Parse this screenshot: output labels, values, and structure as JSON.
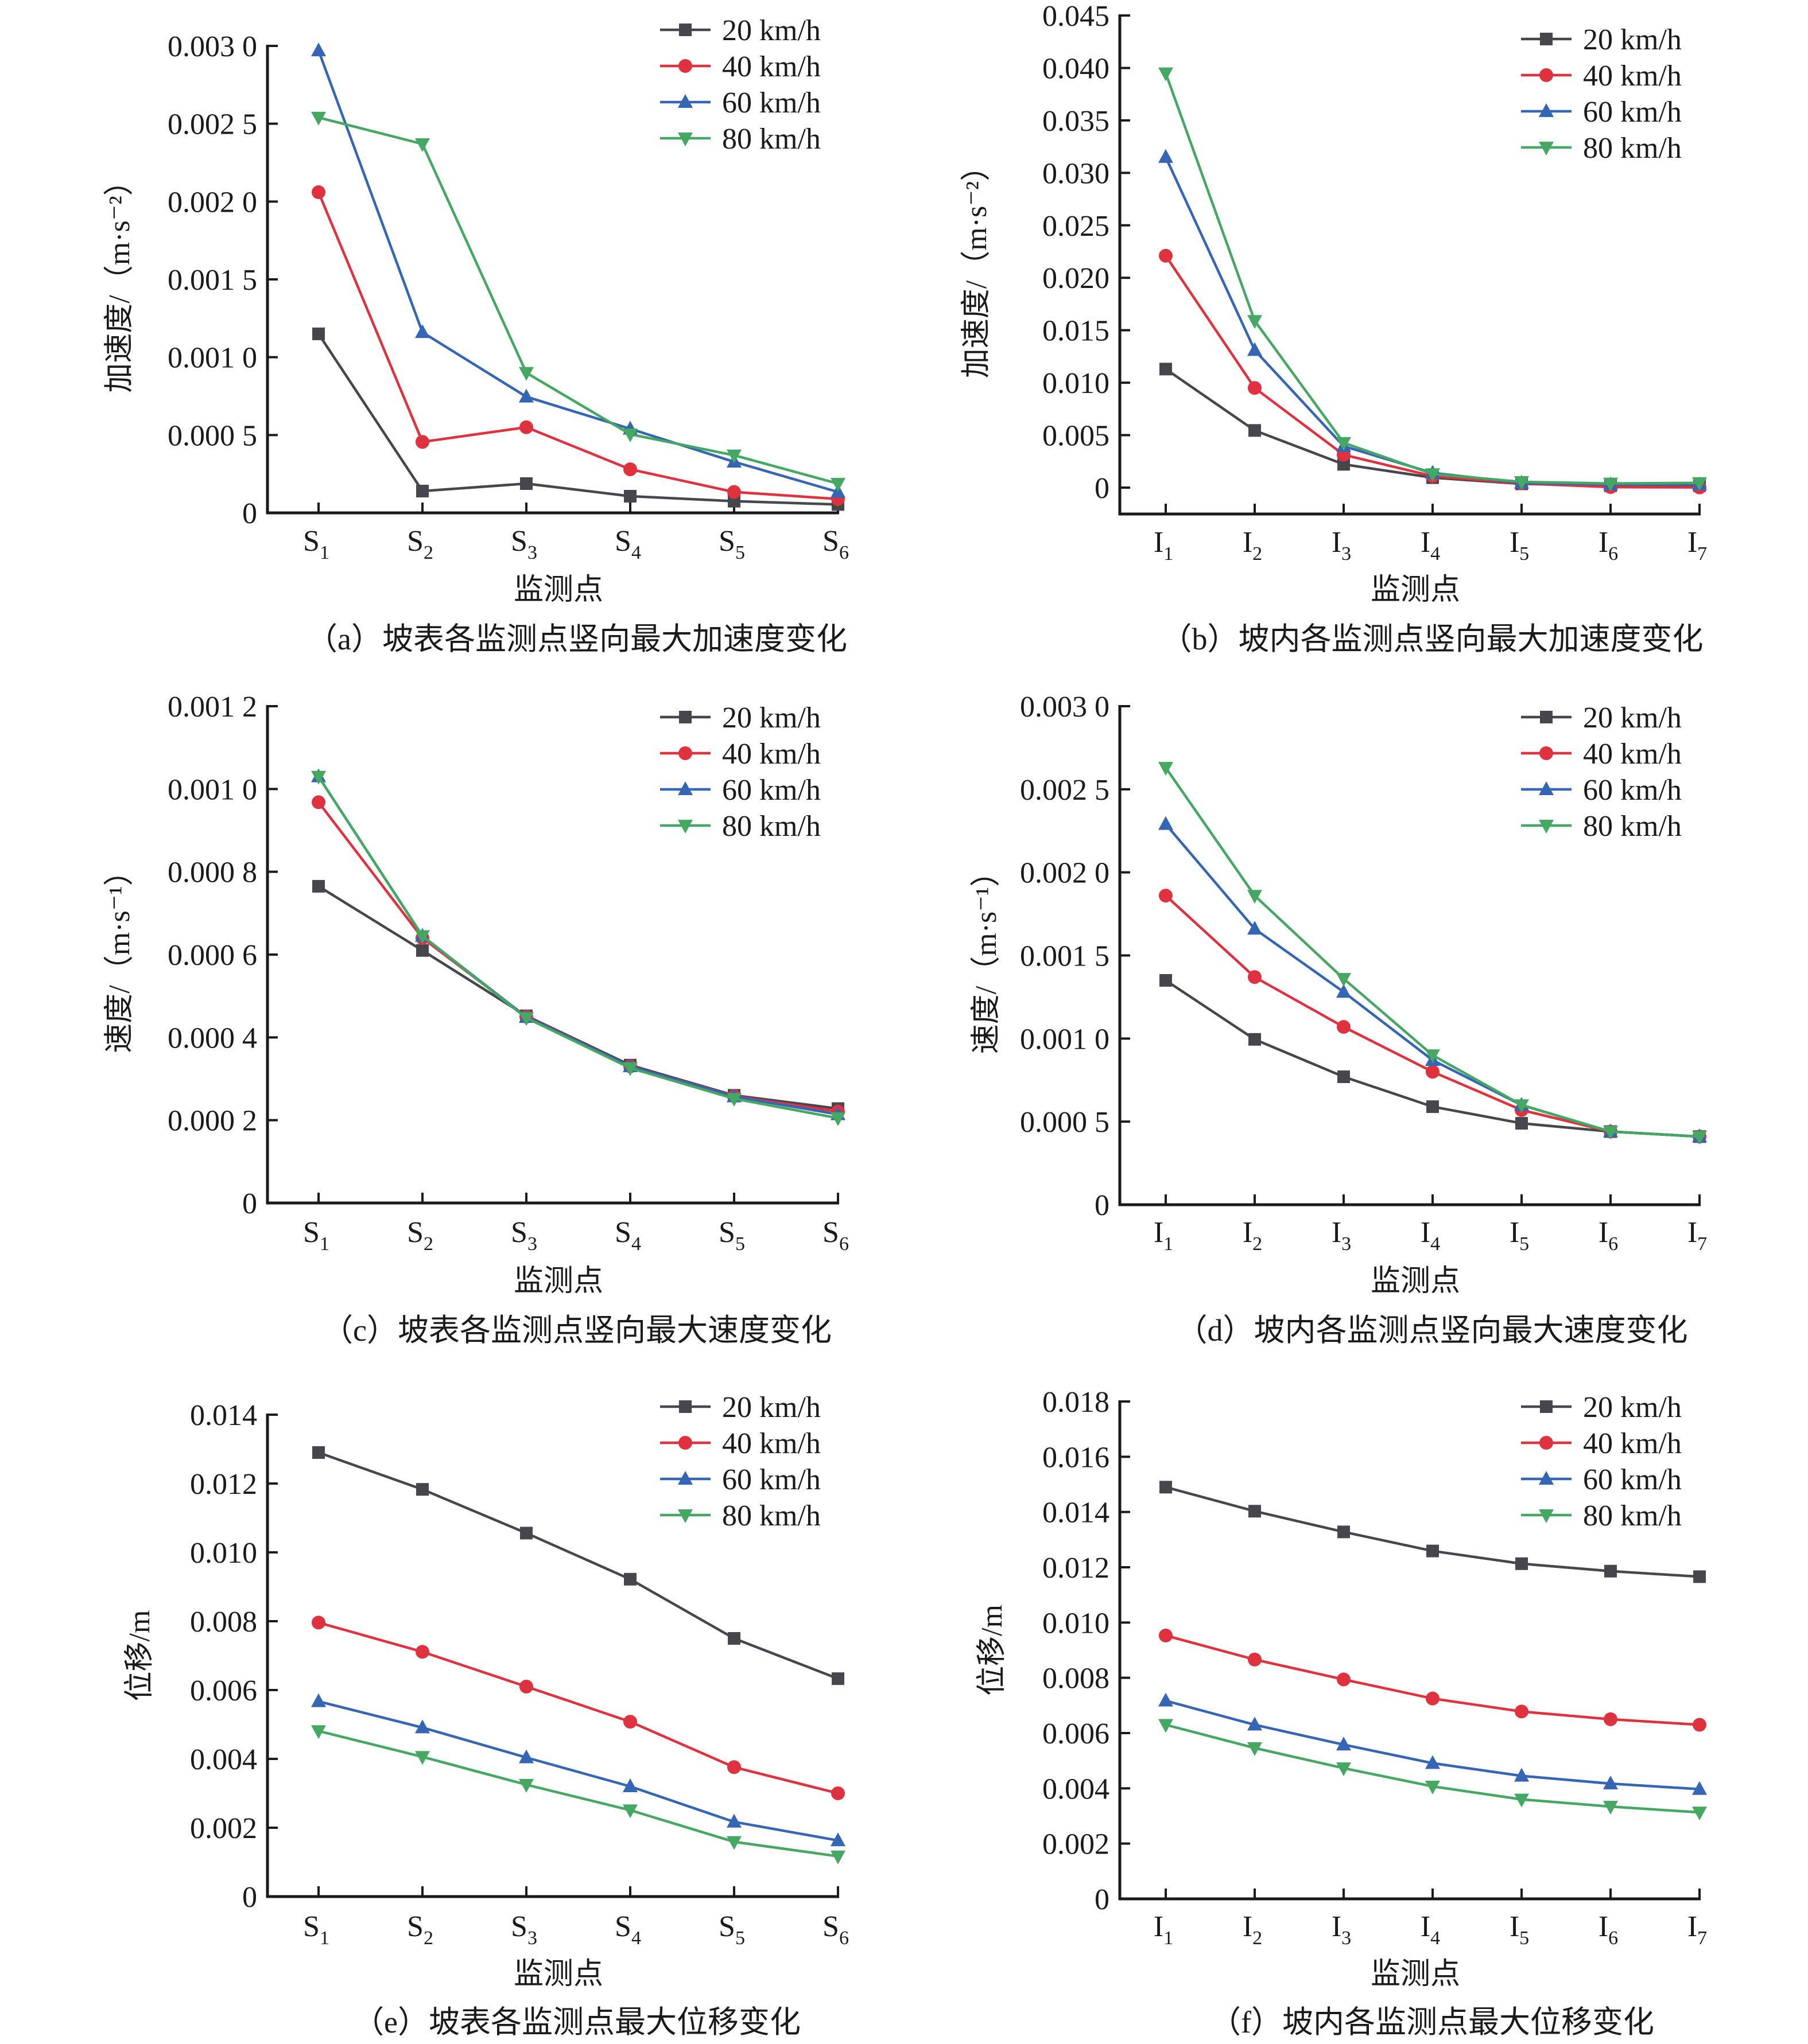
{
  "colors": {
    "20 km/h": "#45474d",
    "40 km/h": "#e0313f",
    "60 km/h": "#3565b5",
    "80 km/h": "#44a862"
  },
  "chart_data": [
    {
      "id": "a",
      "type": "line",
      "caption": "（a）坡表各监测点竖向最大加速度变化",
      "xlabel": "监测点",
      "ylabel": "加速度/（m·s⁻²）",
      "categories": [
        [
          "S",
          "1"
        ],
        [
          "S",
          "2"
        ],
        [
          "S",
          "3"
        ],
        [
          "S",
          "4"
        ],
        [
          "S",
          "5"
        ],
        [
          "S",
          "6"
        ]
      ],
      "ylim": [
        0,
        0.003
      ],
      "yticks": [
        0,
        0.0005,
        0.001,
        0.0015,
        0.002,
        0.0025,
        0.003
      ],
      "ytick_labels": [
        "0",
        "0.000 5",
        "0.001 0",
        "0.001 5",
        "0.002 0",
        "0.002 5",
        "0.003 0"
      ],
      "legend": "top-right",
      "grid": false,
      "series": [
        {
          "name": "20 km/h",
          "marker": "square",
          "values": [
            0.00115,
            0.00014,
            0.000188,
            0.000107,
            7.5e-05,
            5.4e-05
          ]
        },
        {
          "name": "40 km/h",
          "marker": "circle",
          "values": [
            0.00206,
            0.000456,
            0.00055,
            0.00028,
            0.000134,
            8.9e-05
          ]
        },
        {
          "name": "60 km/h",
          "marker": "triangle-up",
          "values": [
            0.00297,
            0.00116,
            0.000746,
            0.00054,
            0.000328,
            0.000134
          ]
        },
        {
          "name": "80 km/h",
          "marker": "triangle-down",
          "values": [
            0.00254,
            0.00237,
            0.0009,
            0.000505,
            0.00037,
            0.000188
          ]
        }
      ]
    },
    {
      "id": "b",
      "type": "line",
      "caption": "（b）坡内各监测点竖向最大加速度变化",
      "xlabel": "监测点",
      "ylabel": "加速度/（m·s⁻²）",
      "categories": [
        [
          "I",
          "1"
        ],
        [
          "I",
          "2"
        ],
        [
          "I",
          "3"
        ],
        [
          "I",
          "4"
        ],
        [
          "I",
          "5"
        ],
        [
          "I",
          "6"
        ],
        [
          "I",
          "7"
        ]
      ],
      "ylim": [
        -0.0035,
        0.045
      ],
      "yticks": [
        0,
        0.005,
        0.01,
        0.015,
        0.02,
        0.025,
        0.03,
        0.035,
        0.04,
        0.045
      ],
      "ytick_labels": [
        "0",
        "0.005",
        "0.010",
        "0.015",
        "0.020",
        "0.025",
        "0.030",
        "0.035",
        "0.040",
        "0.045"
      ],
      "legend": "top-right",
      "grid": false,
      "series": [
        {
          "name": "20 km/h",
          "marker": "square",
          "values": [
            0.0113,
            0.00545,
            0.00222,
            0.00095,
            0.00036,
            0.00018,
            0.00018
          ]
        },
        {
          "name": "40 km/h",
          "marker": "circle",
          "values": [
            0.0221,
            0.0095,
            0.00313,
            0.0011,
            0.0004,
            5e-05,
            2e-05
          ]
        },
        {
          "name": "60 km/h",
          "marker": "triangle-up",
          "values": [
            0.0315,
            0.0131,
            0.00395,
            0.0014,
            0.00045,
            0.0003,
            0.0003
          ]
        },
        {
          "name": "80 km/h",
          "marker": "triangle-down",
          "values": [
            0.0395,
            0.0159,
            0.00427,
            0.0013,
            0.00055,
            0.0004,
            0.00045
          ]
        }
      ]
    },
    {
      "id": "c",
      "type": "line",
      "caption": "（c）坡表各监测点竖向最大速度变化",
      "xlabel": "监测点",
      "ylabel": "速度/（m·s⁻¹）",
      "categories": [
        [
          "S",
          "1"
        ],
        [
          "S",
          "2"
        ],
        [
          "S",
          "3"
        ],
        [
          "S",
          "4"
        ],
        [
          "S",
          "5"
        ],
        [
          "S",
          "6"
        ]
      ],
      "ylim": [
        0,
        0.0012
      ],
      "yticks": [
        0,
        0.0002,
        0.0004,
        0.0006,
        0.0008,
        0.001,
        0.0012
      ],
      "ytick_labels": [
        "0",
        "0.000 2",
        "0.000 4",
        "0.000 6",
        "0.000 8",
        "0.001 0",
        "0.001 2"
      ],
      "legend": "top-right",
      "grid": false,
      "series": [
        {
          "name": "20 km/h",
          "marker": "square",
          "values": [
            0.000765,
            0.00061,
            0.000452,
            0.000333,
            0.00026,
            0.000228
          ]
        },
        {
          "name": "40 km/h",
          "marker": "circle",
          "values": [
            0.000968,
            0.00064,
            0.00045,
            0.00033,
            0.000258,
            0.000221
          ]
        },
        {
          "name": "60 km/h",
          "marker": "triangle-up",
          "values": [
            0.00103,
            0.000645,
            0.000449,
            0.00033,
            0.000257,
            0.000214
          ]
        },
        {
          "name": "80 km/h",
          "marker": "triangle-down",
          "values": [
            0.00103,
            0.000645,
            0.000447,
            0.000326,
            0.000252,
            0.000205
          ]
        }
      ]
    },
    {
      "id": "d",
      "type": "line",
      "caption": "（d）坡内各监测点竖向最大速度变化",
      "xlabel": "监测点",
      "ylabel": "速度/（m·s⁻¹）",
      "categories": [
        [
          "I",
          "1"
        ],
        [
          "I",
          "2"
        ],
        [
          "I",
          "3"
        ],
        [
          "I",
          "4"
        ],
        [
          "I",
          "5"
        ],
        [
          "I",
          "6"
        ],
        [
          "I",
          "7"
        ]
      ],
      "ylim": [
        0,
        0.003
      ],
      "yticks": [
        0,
        0.0005,
        0.001,
        0.0015,
        0.002,
        0.0025,
        0.003
      ],
      "ytick_labels": [
        "0",
        "0.000 5",
        "0.001 0",
        "0.001 5",
        "0.002 0",
        "0.002 5",
        "0.003 0"
      ],
      "legend": "top-right",
      "grid": false,
      "series": [
        {
          "name": "20 km/h",
          "marker": "square",
          "values": [
            0.00135,
            0.000995,
            0.00077,
            0.00059,
            0.00049,
            0.00044,
            0.00041
          ]
        },
        {
          "name": "40 km/h",
          "marker": "circle",
          "values": [
            0.00186,
            0.00137,
            0.00107,
            0.0008,
            0.00057,
            0.00044,
            0.00041
          ]
        },
        {
          "name": "60 km/h",
          "marker": "triangle-up",
          "values": [
            0.00229,
            0.00166,
            0.00128,
            0.00087,
            0.0006,
            0.00044,
            0.00041
          ]
        },
        {
          "name": "80 km/h",
          "marker": "triangle-down",
          "values": [
            0.00263,
            0.00186,
            0.00136,
            0.0009,
            0.0006,
            0.00044,
            0.00041
          ]
        }
      ]
    },
    {
      "id": "e",
      "type": "line",
      "caption": "（e）坡表各监测点最大位移变化",
      "xlabel": "监测点",
      "ylabel": "位移/m",
      "categories": [
        [
          "S",
          "1"
        ],
        [
          "S",
          "2"
        ],
        [
          "S",
          "3"
        ],
        [
          "S",
          "4"
        ],
        [
          "S",
          "5"
        ],
        [
          "S",
          "6"
        ]
      ],
      "ylim": [
        0,
        0.014
      ],
      "yticks": [
        0,
        0.002,
        0.004,
        0.006,
        0.008,
        0.01,
        0.012,
        0.014
      ],
      "ytick_labels": [
        "0",
        "0.002",
        "0.004",
        "0.006",
        "0.008",
        "0.010",
        "0.012",
        "0.014"
      ],
      "legend": "top-right",
      "grid": false,
      "series": [
        {
          "name": "20 km/h",
          "marker": "square",
          "values": [
            0.0129,
            0.01183,
            0.01056,
            0.00922,
            0.0075,
            0.00633
          ]
        },
        {
          "name": "40 km/h",
          "marker": "circle",
          "values": [
            0.00796,
            0.00711,
            0.0061,
            0.00508,
            0.00376,
            0.003
          ]
        },
        {
          "name": "60 km/h",
          "marker": "triangle-up",
          "values": [
            0.00567,
            0.00491,
            0.00404,
            0.0032,
            0.00217,
            0.00163
          ]
        },
        {
          "name": "80 km/h",
          "marker": "triangle-down",
          "values": [
            0.00481,
            0.00406,
            0.00325,
            0.00251,
            0.00159,
            0.00117
          ]
        }
      ]
    },
    {
      "id": "f",
      "type": "line",
      "caption": "（f）坡内各监测点最大位移变化",
      "xlabel": "监测点",
      "ylabel": "位移/m",
      "categories": [
        [
          "I",
          "1"
        ],
        [
          "I",
          "2"
        ],
        [
          "I",
          "3"
        ],
        [
          "I",
          "4"
        ],
        [
          "I",
          "5"
        ],
        [
          "I",
          "6"
        ],
        [
          "I",
          "7"
        ]
      ],
      "ylim": [
        0,
        0.018
      ],
      "yticks": [
        0,
        0.002,
        0.004,
        0.006,
        0.008,
        0.01,
        0.012,
        0.014,
        0.016,
        0.018
      ],
      "ytick_labels": [
        "0",
        "0.002",
        "0.004",
        "0.006",
        "0.008",
        "0.010",
        "0.012",
        "0.014",
        "0.016",
        "0.018"
      ],
      "legend": "top-right",
      "grid": false,
      "series": [
        {
          "name": "20 km/h",
          "marker": "square",
          "values": [
            0.0149,
            0.01403,
            0.01328,
            0.01259,
            0.01213,
            0.01186,
            0.01166
          ]
        },
        {
          "name": "40 km/h",
          "marker": "circle",
          "values": [
            0.00953,
            0.00866,
            0.00794,
            0.00725,
            0.00678,
            0.0065,
            0.0063
          ]
        },
        {
          "name": "60 km/h",
          "marker": "triangle-up",
          "values": [
            0.00717,
            0.0063,
            0.00558,
            0.00491,
            0.00445,
            0.00417,
            0.00397
          ]
        },
        {
          "name": "80 km/h",
          "marker": "triangle-down",
          "values": [
            0.0063,
            0.00546,
            0.00473,
            0.00407,
            0.0036,
            0.00334,
            0.00313
          ]
        }
      ]
    }
  ]
}
